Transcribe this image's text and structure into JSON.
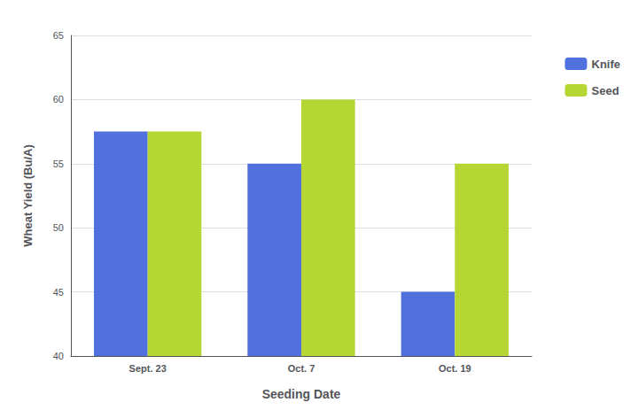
{
  "chart_data": {
    "type": "bar",
    "categories": [
      "Sept. 23",
      "Oct. 7",
      "Oct. 19"
    ],
    "series": [
      {
        "name": "Knife",
        "values": [
          57.5,
          55.0,
          45.0
        ]
      },
      {
        "name": "Seed",
        "values": [
          57.5,
          60.0,
          55.0
        ]
      }
    ],
    "xlabel": "Seeding Date",
    "ylabel": "Wheat Yield (Bu/A)",
    "ylim": [
      40,
      65
    ],
    "yticks": [
      40,
      45,
      50,
      55,
      60,
      65
    ],
    "grid": true,
    "legend": "right"
  }
}
